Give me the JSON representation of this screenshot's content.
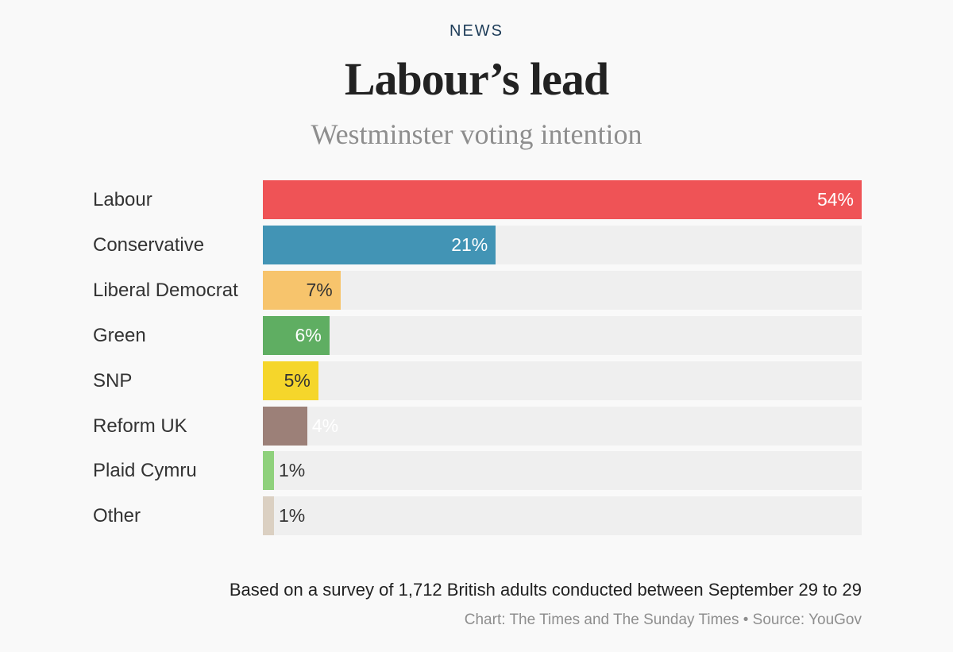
{
  "header": {
    "kicker": "NEWS"
  },
  "chart_data": {
    "type": "bar",
    "orientation": "horizontal",
    "title": "Labour’s lead",
    "subtitle": "Westminster voting intention",
    "categories": [
      "Labour",
      "Conservative",
      "Liberal Democrat",
      "Green",
      "SNP",
      "Reform UK",
      "Plaid Cymru",
      "Other"
    ],
    "values": [
      54,
      21,
      7,
      6,
      5,
      4,
      1,
      1
    ],
    "labels": [
      "54%",
      "21%",
      "7%",
      "6%",
      "5%",
      "4%",
      "1%",
      "1%"
    ],
    "unit": "%",
    "xlim": [
      0,
      54
    ],
    "colors": [
      "#ef5356",
      "#4294b5",
      "#f7c46c",
      "#5fae62",
      "#f5d62b",
      "#9c8078",
      "#8fd17c",
      "#dbd0c2"
    ],
    "label_colors": [
      "#ffffff",
      "#ffffff",
      "#333333",
      "#ffffff",
      "#333333",
      "#ffffff",
      "#333333",
      "#333333"
    ],
    "track_color": "#efefef",
    "note": "Based on a survey of 1,712 British adults conducted between September 29 to 29",
    "credit": "Chart: The Times and The Sunday Times • Source: YouGov"
  }
}
